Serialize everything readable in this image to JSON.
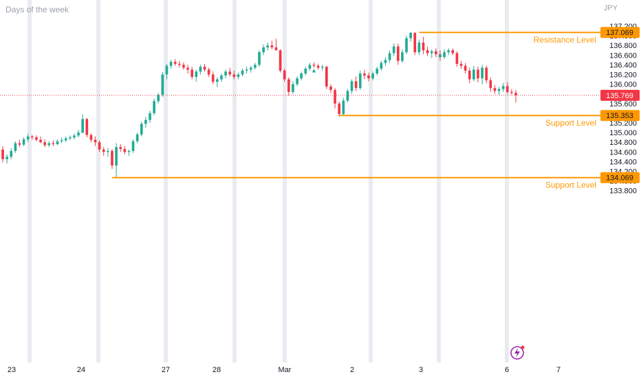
{
  "header": {
    "session_label": "Days of the week",
    "currency": "JPY"
  },
  "chart_data": {
    "type": "candlestick",
    "title": "",
    "ylabel": "",
    "ylim": [
      133.75,
      137.32
    ],
    "y_ticks": [
      "137.200",
      "137.000",
      "136.800",
      "136.600",
      "136.400",
      "136.200",
      "136.000",
      "135.800",
      "135.600",
      "135.400",
      "135.200",
      "135.000",
      "134.800",
      "134.600",
      "134.400",
      "134.200",
      "134.000",
      "133.800"
    ],
    "x_ticks": [
      "23",
      "24",
      "27",
      "28",
      "Mar",
      "2",
      "3",
      "6",
      "7"
    ],
    "grid": false,
    "candles": [
      [
        134.65,
        134.72,
        134.38,
        134.45
      ],
      [
        134.45,
        134.55,
        134.36,
        134.5
      ],
      [
        134.5,
        134.68,
        134.45,
        134.62
      ],
      [
        134.62,
        134.82,
        134.58,
        134.78
      ],
      [
        134.78,
        134.85,
        134.7,
        134.75
      ],
      [
        134.75,
        134.9,
        134.72,
        134.86
      ],
      [
        134.86,
        134.98,
        134.8,
        134.92
      ],
      [
        134.92,
        134.95,
        134.85,
        134.9
      ],
      [
        134.9,
        134.94,
        134.82,
        134.85
      ],
      [
        134.85,
        134.92,
        134.78,
        134.8
      ],
      [
        134.8,
        134.86,
        134.7,
        134.74
      ],
      [
        134.74,
        134.82,
        134.7,
        134.78
      ],
      [
        134.78,
        134.84,
        134.72,
        134.76
      ],
      [
        134.76,
        134.86,
        134.74,
        134.82
      ],
      [
        134.82,
        134.9,
        134.78,
        134.84
      ],
      [
        134.84,
        134.92,
        134.8,
        134.88
      ],
      [
        134.88,
        134.94,
        134.84,
        134.9
      ],
      [
        134.9,
        134.98,
        134.86,
        134.94
      ],
      [
        134.94,
        135.06,
        134.9,
        135.0
      ],
      [
        135.0,
        135.38,
        134.98,
        135.28
      ],
      [
        135.28,
        135.3,
        134.9,
        134.95
      ],
      [
        134.95,
        134.98,
        134.8,
        134.85
      ],
      [
        134.85,
        134.92,
        134.72,
        134.8
      ],
      [
        134.8,
        134.84,
        134.6,
        134.65
      ],
      [
        134.65,
        134.7,
        134.52,
        134.6
      ],
      [
        134.6,
        134.68,
        134.5,
        134.62
      ],
      [
        134.62,
        134.66,
        134.25,
        134.32
      ],
      [
        134.32,
        134.78,
        134.06,
        134.7
      ],
      [
        134.7,
        134.76,
        134.6,
        134.66
      ],
      [
        134.66,
        134.72,
        134.55,
        134.6
      ],
      [
        134.6,
        134.65,
        134.52,
        134.62
      ],
      [
        134.62,
        134.86,
        134.58,
        134.82
      ],
      [
        134.82,
        135.0,
        134.78,
        134.96
      ],
      [
        134.96,
        135.22,
        134.92,
        135.18
      ],
      [
        135.18,
        135.32,
        135.1,
        135.26
      ],
      [
        135.26,
        135.45,
        135.2,
        135.4
      ],
      [
        135.4,
        135.7,
        135.36,
        135.65
      ],
      [
        135.65,
        135.82,
        135.6,
        135.78
      ],
      [
        135.78,
        136.25,
        135.74,
        136.2
      ],
      [
        136.2,
        136.42,
        136.1,
        136.38
      ],
      [
        136.38,
        136.5,
        136.32,
        136.46
      ],
      [
        136.46,
        136.52,
        136.38,
        136.42
      ],
      [
        136.42,
        136.48,
        136.35,
        136.4
      ],
      [
        136.4,
        136.45,
        136.3,
        136.34
      ],
      [
        136.34,
        136.4,
        136.22,
        136.3
      ],
      [
        136.3,
        136.36,
        136.1,
        136.15
      ],
      [
        136.15,
        136.3,
        136.05,
        136.26
      ],
      [
        136.26,
        136.4,
        136.2,
        136.36
      ],
      [
        136.36,
        136.42,
        136.26,
        136.3
      ],
      [
        136.3,
        136.34,
        136.15,
        136.2
      ],
      [
        136.2,
        136.26,
        136.0,
        136.05
      ],
      [
        136.05,
        136.14,
        135.94,
        136.1
      ],
      [
        136.1,
        136.22,
        136.05,
        136.18
      ],
      [
        136.18,
        136.3,
        136.12,
        136.26
      ],
      [
        136.26,
        136.34,
        136.16,
        136.2
      ],
      [
        136.2,
        136.28,
        136.1,
        136.15
      ],
      [
        136.15,
        136.24,
        136.1,
        136.2
      ],
      [
        136.2,
        136.32,
        136.16,
        136.28
      ],
      [
        136.28,
        136.36,
        136.22,
        136.3
      ],
      [
        136.3,
        136.38,
        136.24,
        136.34
      ],
      [
        136.34,
        136.44,
        136.3,
        136.4
      ],
      [
        136.4,
        136.7,
        136.36,
        136.66
      ],
      [
        136.66,
        136.82,
        136.6,
        136.76
      ],
      [
        136.76,
        136.86,
        136.7,
        136.8
      ],
      [
        136.8,
        136.9,
        136.72,
        136.76
      ],
      [
        136.76,
        136.94,
        136.7,
        136.7
      ],
      [
        136.7,
        136.72,
        136.24,
        136.28
      ],
      [
        136.28,
        136.32,
        136.05,
        136.1
      ],
      [
        136.1,
        136.14,
        135.76,
        135.84
      ],
      [
        135.84,
        136.06,
        135.8,
        136.0
      ],
      [
        136.0,
        136.16,
        135.96,
        136.12
      ],
      [
        136.12,
        136.26,
        136.08,
        136.22
      ],
      [
        136.22,
        136.36,
        136.18,
        136.32
      ],
      [
        136.32,
        136.44,
        136.28,
        136.4
      ],
      [
        136.4,
        136.45,
        136.34,
        136.38
      ],
      [
        136.38,
        136.42,
        136.3,
        136.34
      ],
      [
        136.34,
        136.4,
        136.28,
        136.36
      ],
      [
        136.36,
        136.38,
        135.9,
        135.95
      ],
      [
        135.95,
        136.0,
        135.82,
        135.88
      ],
      [
        135.88,
        135.92,
        135.5,
        135.6
      ],
      [
        135.6,
        135.64,
        135.33,
        135.38
      ],
      [
        135.38,
        135.72,
        135.35,
        135.66
      ],
      [
        135.66,
        135.9,
        135.62,
        135.86
      ],
      [
        135.86,
        136.1,
        135.8,
        136.06
      ],
      [
        136.06,
        136.16,
        135.86,
        135.92
      ],
      [
        135.92,
        136.28,
        135.88,
        136.22
      ],
      [
        136.22,
        136.3,
        136.1,
        136.18
      ],
      [
        136.18,
        136.24,
        136.06,
        136.12
      ],
      [
        136.12,
        136.26,
        136.08,
        136.22
      ],
      [
        136.22,
        136.36,
        136.18,
        136.32
      ],
      [
        136.32,
        136.48,
        136.28,
        136.44
      ],
      [
        136.44,
        136.56,
        136.38,
        136.5
      ],
      [
        136.5,
        136.7,
        136.44,
        136.64
      ],
      [
        136.64,
        136.84,
        136.58,
        136.78
      ],
      [
        136.78,
        136.84,
        136.4,
        136.48
      ],
      [
        136.48,
        136.72,
        136.44,
        136.66
      ],
      [
        136.66,
        137.0,
        136.62,
        136.95
      ],
      [
        136.95,
        137.08,
        136.88,
        137.06
      ],
      [
        137.06,
        137.07,
        136.6,
        136.66
      ],
      [
        136.66,
        136.92,
        136.6,
        136.86
      ],
      [
        136.86,
        136.98,
        136.62,
        136.7
      ],
      [
        136.7,
        136.78,
        136.58,
        136.64
      ],
      [
        136.64,
        136.72,
        136.54,
        136.68
      ],
      [
        136.68,
        136.74,
        136.56,
        136.62
      ],
      [
        136.62,
        136.7,
        136.48,
        136.56
      ],
      [
        136.56,
        136.72,
        136.52,
        136.66
      ],
      [
        136.66,
        136.74,
        136.6,
        136.7
      ],
      [
        136.7,
        136.74,
        136.6,
        136.64
      ],
      [
        136.64,
        136.68,
        136.36,
        136.42
      ],
      [
        136.42,
        136.48,
        136.32,
        136.38
      ],
      [
        136.38,
        136.44,
        136.22,
        136.28
      ],
      [
        136.28,
        136.34,
        136.02,
        136.1
      ],
      [
        136.1,
        136.38,
        136.06,
        136.3
      ],
      [
        136.3,
        136.36,
        136.04,
        136.12
      ],
      [
        136.12,
        136.4,
        136.0,
        136.34
      ],
      [
        136.34,
        136.38,
        136.02,
        136.08
      ],
      [
        136.08,
        136.14,
        135.84,
        135.92
      ],
      [
        135.92,
        135.98,
        135.8,
        135.86
      ],
      [
        135.86,
        135.94,
        135.78,
        135.9
      ],
      [
        135.9,
        136.02,
        135.84,
        135.96
      ],
      [
        135.96,
        136.04,
        135.8,
        135.84
      ],
      [
        135.84,
        135.9,
        135.78,
        135.82
      ],
      [
        135.82,
        135.88,
        135.62,
        135.77
      ]
    ],
    "markers": [
      {
        "label": "▲",
        "x": 74,
        "y": 136.24
      },
      {
        "label": "▲",
        "x": 104,
        "y": 136.56
      }
    ],
    "levels": [
      {
        "name": "Resistance Level",
        "value": "137.069",
        "y": 137.069
      },
      {
        "name": "Support Level",
        "value": "135.353",
        "y": 135.353
      },
      {
        "name": "Support Level",
        "value": "134.069",
        "y": 134.069
      }
    ],
    "current_price": {
      "value": "135.769",
      "y": 135.769
    },
    "colors": {
      "up": "#22ab94",
      "down": "#f23645",
      "level": "#ff9800",
      "current": "#f23645",
      "session_band": "#e9ebf0",
      "axis_text": "#131722"
    }
  }
}
